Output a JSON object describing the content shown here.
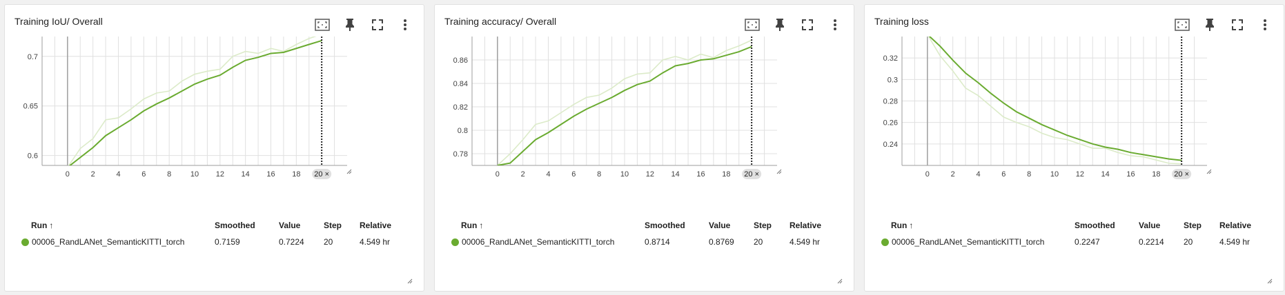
{
  "colors": {
    "series": "#6aab30",
    "raw": "#dcebc9",
    "grid": "#e0e0e0",
    "axis": "#9e9e9e",
    "badge": "#e0e0e0"
  },
  "icons": [
    "fit-domain-icon",
    "pin-icon",
    "fullscreen-icon",
    "more-vert-icon"
  ],
  "table_headers": {
    "run": "Run",
    "run_sort": "↑",
    "smoothed": "Smoothed",
    "value": "Value",
    "step": "Step",
    "relative": "Relative"
  },
  "panels": [
    {
      "title": "Training IoU/ Overall",
      "run": {
        "name": "00006_RandLANet_SemanticKITTI_torch",
        "smoothed": "0.7159",
        "value": "0.7224",
        "step": "20",
        "relative": "4.549 hr"
      }
    },
    {
      "title": "Training accuracy/ Overall",
      "run": {
        "name": "00006_RandLANet_SemanticKITTI_torch",
        "smoothed": "0.8714",
        "value": "0.8769",
        "step": "20",
        "relative": "4.549 hr"
      }
    },
    {
      "title": "Training loss",
      "run": {
        "name": "00006_RandLANet_SemanticKITTI_torch",
        "smoothed": "0.2247",
        "value": "0.2214",
        "step": "20",
        "relative": "4.549 hr"
      }
    }
  ],
  "chart_data": [
    {
      "type": "line",
      "title": "Training IoU/ Overall",
      "xlim": [
        -2,
        22
      ],
      "ylim": [
        0.59,
        0.72
      ],
      "x_ticks": [
        0,
        2,
        4,
        6,
        8,
        10,
        12,
        14,
        16,
        18
      ],
      "y_ticks": [
        0.6,
        0.65,
        0.7
      ],
      "y_tick_labels": [
        "0.6",
        "0.65",
        "0.7"
      ],
      "cursor_step": 20,
      "cursor_label": "20 ×",
      "x": [
        0,
        1,
        2,
        3,
        4,
        5,
        6,
        7,
        8,
        9,
        10,
        11,
        12,
        13,
        14,
        15,
        16,
        17,
        18,
        19,
        20
      ],
      "series": [
        {
          "name": "smoothed",
          "values": [
            0.588,
            0.598,
            0.608,
            0.62,
            0.628,
            0.636,
            0.645,
            0.652,
            0.658,
            0.665,
            0.672,
            0.677,
            0.681,
            0.689,
            0.696,
            0.699,
            0.703,
            0.704,
            0.708,
            0.712,
            0.7159
          ]
        },
        {
          "name": "raw",
          "values": [
            0.588,
            0.607,
            0.617,
            0.636,
            0.638,
            0.647,
            0.657,
            0.663,
            0.665,
            0.675,
            0.682,
            0.685,
            0.687,
            0.7,
            0.705,
            0.703,
            0.708,
            0.705,
            0.712,
            0.718,
            0.7224
          ]
        }
      ]
    },
    {
      "type": "line",
      "title": "Training accuracy/ Overall",
      "xlim": [
        -2,
        22
      ],
      "ylim": [
        0.77,
        0.88
      ],
      "x_ticks": [
        0,
        2,
        4,
        6,
        8,
        10,
        12,
        14,
        16,
        18
      ],
      "y_ticks": [
        0.78,
        0.8,
        0.82,
        0.84,
        0.86
      ],
      "y_tick_labels": [
        "0.78",
        "0.8",
        "0.82",
        "0.84",
        "0.86"
      ],
      "cursor_step": 20,
      "cursor_label": "20 ×",
      "x": [
        0,
        1,
        2,
        3,
        4,
        5,
        6,
        7,
        8,
        9,
        10,
        11,
        12,
        13,
        14,
        15,
        16,
        17,
        18,
        19,
        20
      ],
      "series": [
        {
          "name": "smoothed",
          "values": [
            0.77,
            0.772,
            0.782,
            0.792,
            0.798,
            0.805,
            0.812,
            0.818,
            0.823,
            0.828,
            0.834,
            0.839,
            0.842,
            0.849,
            0.855,
            0.857,
            0.86,
            0.861,
            0.864,
            0.867,
            0.8714
          ]
        },
        {
          "name": "raw",
          "values": [
            0.77,
            0.78,
            0.792,
            0.805,
            0.808,
            0.815,
            0.822,
            0.828,
            0.83,
            0.836,
            0.844,
            0.848,
            0.849,
            0.86,
            0.863,
            0.86,
            0.865,
            0.862,
            0.868,
            0.872,
            0.8769
          ]
        }
      ]
    },
    {
      "type": "line",
      "title": "Training loss",
      "xlim": [
        -2,
        22
      ],
      "ylim": [
        0.22,
        0.34
      ],
      "x_ticks": [
        0,
        2,
        4,
        6,
        8,
        10,
        12,
        14,
        16,
        18
      ],
      "y_ticks": [
        0.24,
        0.26,
        0.28,
        0.3,
        0.32
      ],
      "y_tick_labels": [
        "0.24",
        "0.26",
        "0.28",
        "0.3",
        "0.32"
      ],
      "cursor_step": 20,
      "cursor_label": "20 ×",
      "x": [
        0,
        1,
        2,
        3,
        4,
        5,
        6,
        7,
        8,
        9,
        10,
        11,
        12,
        13,
        14,
        15,
        16,
        17,
        18,
        19,
        20
      ],
      "series": [
        {
          "name": "smoothed",
          "values": [
            0.342,
            0.331,
            0.318,
            0.306,
            0.297,
            0.287,
            0.278,
            0.27,
            0.264,
            0.258,
            0.253,
            0.248,
            0.244,
            0.24,
            0.237,
            0.235,
            0.232,
            0.23,
            0.228,
            0.226,
            0.2247
          ]
        },
        {
          "name": "raw",
          "values": [
            0.342,
            0.322,
            0.308,
            0.292,
            0.285,
            0.275,
            0.265,
            0.26,
            0.256,
            0.25,
            0.246,
            0.244,
            0.24,
            0.236,
            0.236,
            0.232,
            0.229,
            0.228,
            0.225,
            0.222,
            0.2214
          ]
        }
      ]
    }
  ]
}
